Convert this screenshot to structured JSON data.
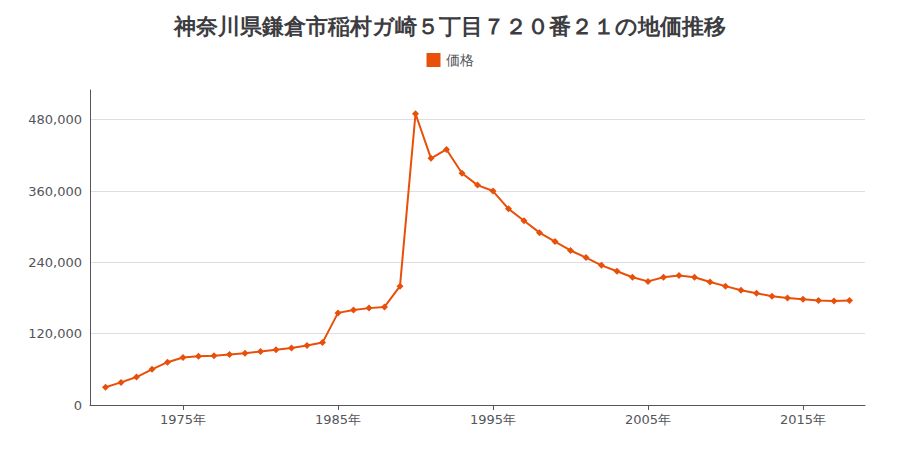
{
  "chart_data": {
    "type": "line",
    "title": "神奈川県鎌倉市稲村ガ崎５丁目７２０番２１の地価推移",
    "x": [
      1970,
      1971,
      1972,
      1973,
      1974,
      1975,
      1976,
      1977,
      1978,
      1979,
      1980,
      1981,
      1982,
      1983,
      1984,
      1985,
      1986,
      1987,
      1988,
      1989,
      1990,
      1991,
      1992,
      1993,
      1994,
      1995,
      1996,
      1997,
      1998,
      1999,
      2000,
      2001,
      2002,
      2003,
      2004,
      2005,
      2006,
      2007,
      2008,
      2009,
      2010,
      2011,
      2012,
      2013,
      2014,
      2015,
      2016,
      2017,
      2018
    ],
    "series": [
      {
        "name": "価格",
        "color": "#e8500a",
        "marker": "diamond",
        "values": [
          30000,
          38000,
          47000,
          60000,
          72000,
          80000,
          82000,
          83000,
          85000,
          87000,
          90000,
          93000,
          96000,
          100000,
          105000,
          155000,
          160000,
          163000,
          165000,
          200000,
          490000,
          415000,
          430000,
          390000,
          370000,
          360000,
          330000,
          310000,
          290000,
          275000,
          260000,
          248000,
          235000,
          225000,
          215000,
          208000,
          215000,
          218000,
          215000,
          207000,
          200000,
          193000,
          188000,
          183000,
          180000,
          178000,
          176000,
          175000,
          176000
        ]
      }
    ],
    "xlim": [
      1969,
      2019
    ],
    "xticks": [
      {
        "value": 1975,
        "label": "1975年"
      },
      {
        "value": 1985,
        "label": "1985年"
      },
      {
        "value": 1995,
        "label": "1995年"
      },
      {
        "value": 2005,
        "label": "2005年"
      },
      {
        "value": 2015,
        "label": "2015年"
      }
    ],
    "ylim": [
      0,
      530000
    ],
    "yticks": [
      0,
      {
        "value": 120000,
        "label": "120,000"
      },
      {
        "value": 240000,
        "label": "240,000"
      },
      {
        "value": 360000,
        "label": "360,000"
      },
      {
        "value": 480000,
        "label": "480,000"
      }
    ],
    "grid": true,
    "legend": "top"
  }
}
